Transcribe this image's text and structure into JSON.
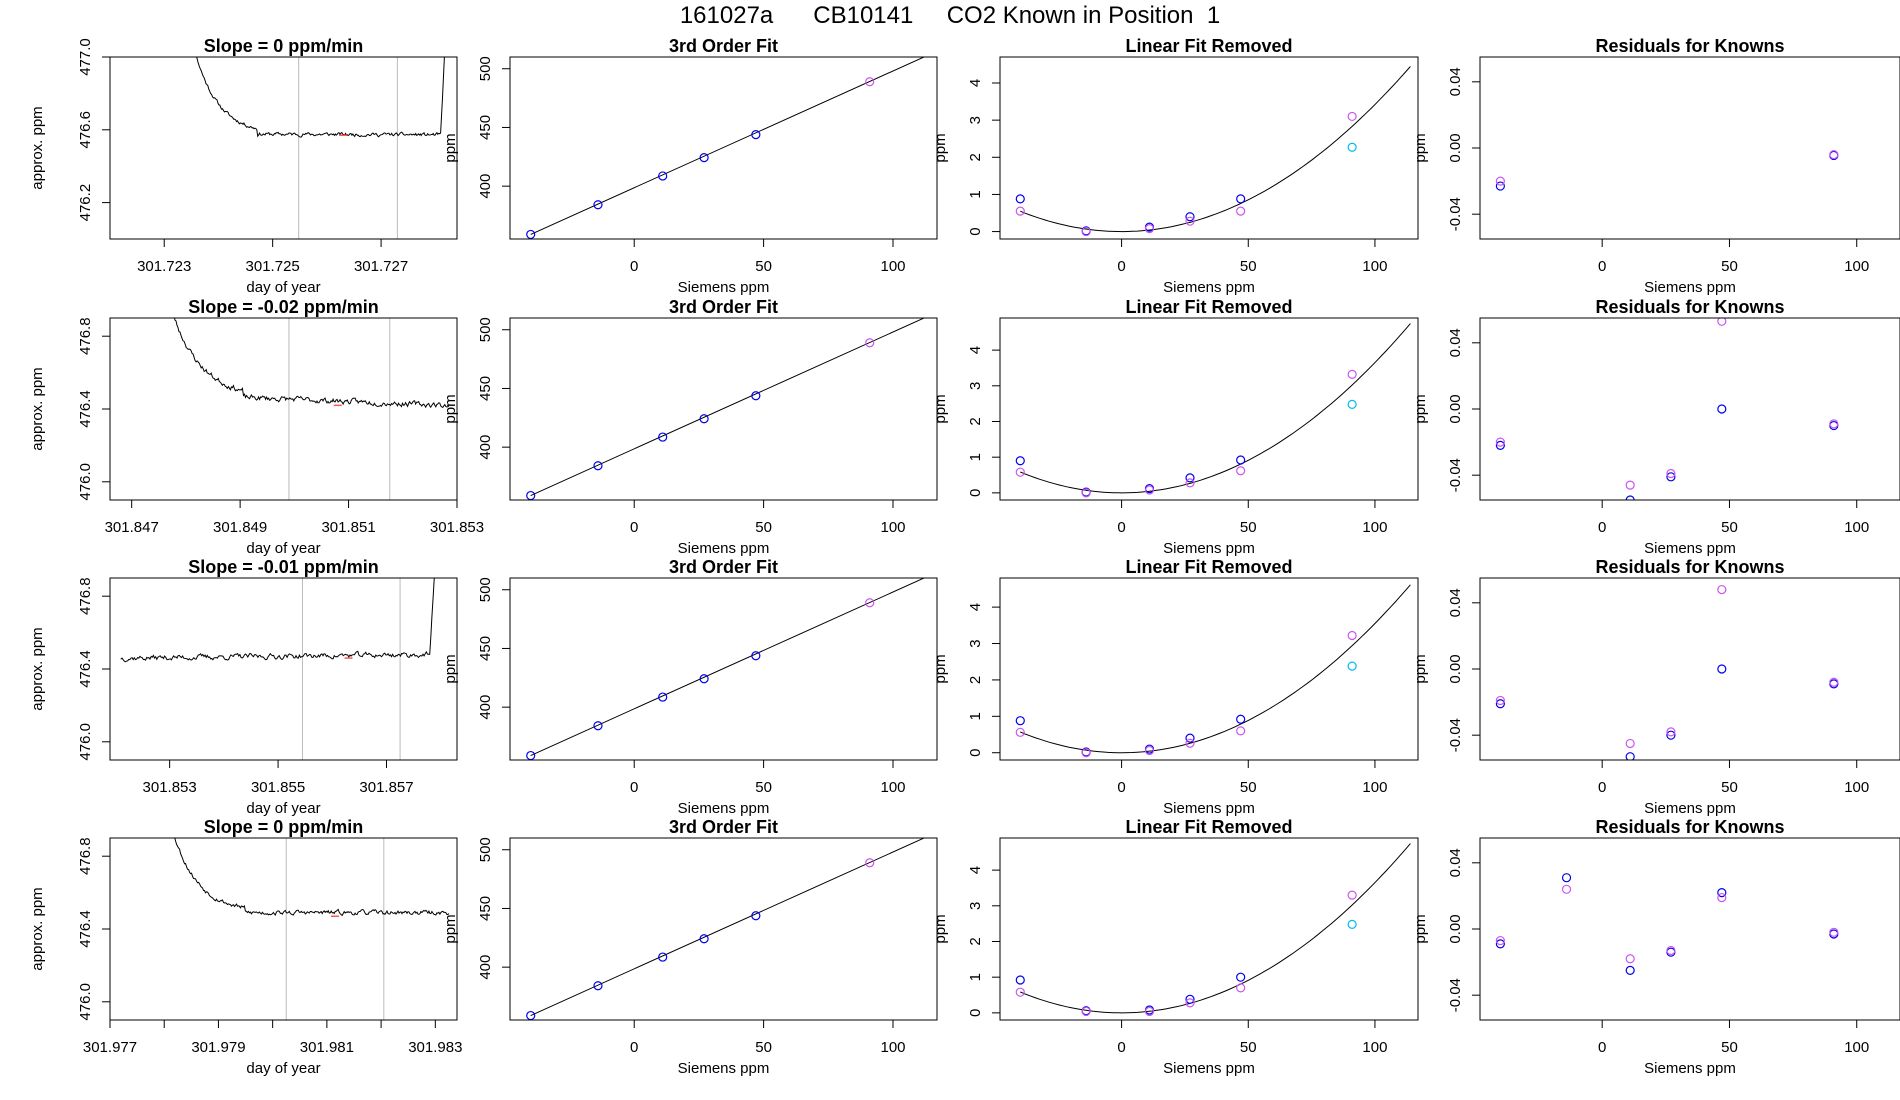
{
  "figure": {
    "title": "161027a      CB10141     CO2 Known in Position  1"
  },
  "colors": {
    "line": "#000000",
    "known_point": "#0000ee",
    "fit_point": "#cc55ee",
    "tank_point": "#00bbee",
    "vertical_marker": "#bbbbbb",
    "red_mark": "#ff5555"
  },
  "chart_data": [
    {
      "type": "line",
      "row": 1,
      "panel": "time-series",
      "title": "Slope =  0  ppm/min",
      "xlabel": "day of year",
      "ylabel": "approx. ppm",
      "xlim": [
        301.722,
        301.7284
      ],
      "ylim": [
        476.0,
        477.0
      ],
      "xticks": [
        301.723,
        301.725,
        301.727
      ],
      "xtick_labels": [
        "301.723",
        "301.725",
        "301.727"
      ],
      "yticks": [
        476.2,
        476.6,
        477.0
      ],
      "ytick_labels": [
        "476.2",
        "476.6",
        "477.0"
      ],
      "vlines": [
        301.72548,
        301.7273
      ],
      "trace": {
        "x_start": 301.72343,
        "x_end": 301.7282,
        "plateau": 476.575,
        "noise": 0.008,
        "drift": -0.005,
        "seed": 11,
        "head": {
          "x0": 301.72343,
          "x1": 301.72352,
          "y0": 477.2,
          "tau": 0.09
        },
        "tail": {
          "x0": 301.7281,
          "x1": 301.7282,
          "y1": 477.2
        }
      },
      "red_marks": [
        {
          "x": 301.7263,
          "y": 476.57
        }
      ]
    },
    {
      "type": "scatter",
      "row": 1,
      "panel": "3rd-order-fit",
      "title": "3rd Order Fit",
      "xlabel": "Siemens ppm",
      "ylabel": "ppm",
      "xlim": [
        -48,
        117
      ],
      "ylim": [
        355,
        510
      ],
      "xticks": [
        0,
        50,
        100
      ],
      "yticks": [
        400,
        450,
        500
      ],
      "series": [
        {
          "name": "",
          "role": "known",
          "x": [
            -40,
            -14,
            11,
            27,
            47
          ],
          "y": [
            358.9,
            384.2,
            408.7,
            424.3,
            443.9
          ]
        },
        {
          "name": "",
          "role": "fit",
          "x": [
            91
          ],
          "y": [
            488.9
          ]
        }
      ],
      "fit_line": {
        "x": [
          -40,
          114
        ],
        "y": [
          358.9,
          512.0
        ]
      }
    },
    {
      "type": "scatter",
      "row": 1,
      "panel": "linear-fit-removed",
      "title": "Linear Fit Removed",
      "xlabel": "Siemens ppm",
      "ylabel": "ppm",
      "xlim": [
        -48,
        117
      ],
      "ylim": [
        -0.2,
        4.7
      ],
      "xticks": [
        0,
        50,
        100
      ],
      "yticks": [
        0,
        1,
        2,
        3,
        4
      ],
      "series": [
        {
          "name": "",
          "role": "known",
          "x": [
            -40,
            -14,
            11,
            27,
            47
          ],
          "y": [
            0.88,
            0.02,
            0.12,
            0.4,
            0.88
          ]
        },
        {
          "name": "",
          "role": "fit",
          "x": [
            -40,
            -14,
            11,
            27,
            47,
            91
          ],
          "y": [
            0.55,
            0.0,
            0.08,
            0.28,
            0.55,
            3.1
          ]
        },
        {
          "name": "",
          "role": "tank",
          "x": [
            91
          ],
          "y": [
            2.27
          ]
        }
      ],
      "curve": {
        "a": 0.000342,
        "x": [
          -40,
          114
        ]
      }
    },
    {
      "type": "scatter",
      "row": 1,
      "panel": "residuals",
      "title": "Residuals for Knowns",
      "xlabel": "Siemens ppm",
      "ylabel": "ppm",
      "xlim": [
        -48,
        117
      ],
      "ylim": [
        -0.055,
        0.055
      ],
      "xticks": [
        0,
        50,
        100
      ],
      "yticks": [
        -0.04,
        0.0,
        0.04
      ],
      "ytick_labels": [
        "-0.04",
        "0.00",
        "0.04"
      ],
      "series": [
        {
          "name": "",
          "role": "known",
          "x": [
            -40,
            91
          ],
          "y": [
            -0.023,
            -0.0045
          ]
        },
        {
          "name": "",
          "role": "fit",
          "x": [
            -40,
            91
          ],
          "y": [
            -0.02,
            -0.004
          ]
        }
      ]
    },
    {
      "type": "line",
      "row": 2,
      "panel": "time-series",
      "title": "Slope =  -0.02  ppm/min",
      "xlabel": "day of year",
      "ylabel": "approx. ppm",
      "xlim": [
        301.8466,
        301.853
      ],
      "ylim": [
        475.9,
        476.9
      ],
      "xticks": [
        301.847,
        301.849,
        301.851,
        301.853
      ],
      "xtick_labels": [
        "301.847",
        "301.849",
        "301.851",
        "301.853"
      ],
      "yticks": [
        476.0,
        476.4,
        476.8
      ],
      "ytick_labels": [
        "476.0",
        "476.4",
        "476.8"
      ],
      "vlines": [
        301.8499,
        301.85176
      ],
      "trace": {
        "x_start": 301.84765,
        "x_end": 301.85285,
        "plateau": 476.45,
        "noise": 0.012,
        "drift": -0.06,
        "seed": 23,
        "head": {
          "x0": 301.84765,
          "x1": 301.84775,
          "y0": 477.0,
          "tau": 0.1
        }
      },
      "red_marks": [
        {
          "x": 301.8508,
          "y": 476.42
        }
      ]
    },
    {
      "type": "scatter",
      "row": 2,
      "panel": "3rd-order-fit",
      "title": "3rd Order Fit",
      "xlabel": "Siemens ppm",
      "ylabel": "ppm",
      "xlim": [
        -48,
        117
      ],
      "ylim": [
        355,
        510
      ],
      "xticks": [
        0,
        50,
        100
      ],
      "yticks": [
        400,
        450,
        500
      ],
      "series": [
        {
          "name": "",
          "role": "known",
          "x": [
            -40,
            -14,
            11,
            27,
            47
          ],
          "y": [
            358.8,
            384.2,
            408.6,
            424.2,
            443.8
          ]
        },
        {
          "name": "",
          "role": "fit",
          "x": [
            91
          ],
          "y": [
            488.9
          ]
        }
      ],
      "fit_line": {
        "x": [
          -40,
          114
        ],
        "y": [
          358.8,
          512.0
        ]
      }
    },
    {
      "type": "scatter",
      "row": 2,
      "panel": "linear-fit-removed",
      "title": "Linear Fit Removed",
      "xlabel": "Siemens ppm",
      "ylabel": "ppm",
      "xlim": [
        -48,
        117
      ],
      "ylim": [
        -0.2,
        4.9
      ],
      "xticks": [
        0,
        50,
        100
      ],
      "yticks": [
        0,
        1,
        2,
        3,
        4
      ],
      "series": [
        {
          "name": "",
          "role": "known",
          "x": [
            -40,
            -14,
            11,
            27,
            47
          ],
          "y": [
            0.9,
            0.02,
            0.12,
            0.42,
            0.92
          ]
        },
        {
          "name": "",
          "role": "fit",
          "x": [
            -40,
            -14,
            11,
            27,
            47,
            91
          ],
          "y": [
            0.58,
            0.0,
            0.08,
            0.28,
            0.62,
            3.32
          ]
        },
        {
          "name": "",
          "role": "tank",
          "x": [
            91
          ],
          "y": [
            2.48
          ]
        }
      ],
      "curve": {
        "a": 0.000365,
        "x": [
          -40,
          114
        ]
      }
    },
    {
      "type": "scatter",
      "row": 2,
      "panel": "residuals",
      "title": "Residuals for Knowns",
      "xlabel": "Siemens ppm",
      "ylabel": "ppm",
      "xlim": [
        -48,
        117
      ],
      "ylim": [
        -0.055,
        0.055
      ],
      "xticks": [
        0,
        50,
        100
      ],
      "yticks": [
        -0.04,
        0.0,
        0.04
      ],
      "ytick_labels": [
        "-0.04",
        "0.00",
        "0.04"
      ],
      "series": [
        {
          "name": "",
          "role": "known",
          "x": [
            -40,
            11,
            27,
            47,
            91
          ],
          "y": [
            -0.022,
            -0.055,
            -0.041,
            0.0,
            -0.01
          ]
        },
        {
          "name": "",
          "role": "fit",
          "x": [
            -40,
            11,
            27,
            47,
            91
          ],
          "y": [
            -0.02,
            -0.046,
            -0.039,
            0.053,
            -0.009
          ]
        }
      ]
    },
    {
      "type": "line",
      "row": 3,
      "panel": "time-series",
      "title": "Slope =  -0.01  ppm/min",
      "xlabel": "day of year",
      "ylabel": "approx. ppm",
      "xlim": [
        301.8519,
        301.8583
      ],
      "ylim": [
        475.9,
        476.9
      ],
      "xticks": [
        301.853,
        301.855,
        301.857
      ],
      "xtick_labels": [
        "301.853",
        "301.855",
        "301.857"
      ],
      "yticks": [
        476.0,
        476.4,
        476.8
      ],
      "ytick_labels": [
        "476.0",
        "476.4",
        "476.8"
      ],
      "vlines": [
        301.85545,
        301.85725
      ],
      "trace": {
        "x_start": 301.8521,
        "x_end": 301.8579,
        "plateau": 476.47,
        "noise": 0.012,
        "drift": 0.02,
        "seed": 37,
        "tail": {
          "x0": 301.8578,
          "x1": 301.8579,
          "y1": 477.0
        }
      },
      "red_marks": [
        {
          "x": 301.8563,
          "y": 476.46
        }
      ]
    },
    {
      "type": "scatter",
      "row": 3,
      "panel": "3rd-order-fit",
      "title": "3rd Order Fit",
      "xlabel": "Siemens ppm",
      "ylabel": "ppm",
      "xlim": [
        -48,
        117
      ],
      "ylim": [
        355,
        510
      ],
      "xticks": [
        0,
        50,
        100
      ],
      "yticks": [
        400,
        450,
        500
      ],
      "series": [
        {
          "name": "",
          "role": "known",
          "x": [
            -40,
            -14,
            11,
            27,
            47
          ],
          "y": [
            358.8,
            384.2,
            408.6,
            424.2,
            443.8
          ]
        },
        {
          "name": "",
          "role": "fit",
          "x": [
            91
          ],
          "y": [
            488.9
          ]
        }
      ],
      "fit_line": {
        "x": [
          -40,
          114
        ],
        "y": [
          358.8,
          512.0
        ]
      }
    },
    {
      "type": "scatter",
      "row": 3,
      "panel": "linear-fit-removed",
      "title": "Linear Fit Removed",
      "xlabel": "Siemens ppm",
      "ylabel": "ppm",
      "xlim": [
        -48,
        117
      ],
      "ylim": [
        -0.2,
        4.8
      ],
      "xticks": [
        0,
        50,
        100
      ],
      "yticks": [
        0,
        1,
        2,
        3,
        4
      ],
      "series": [
        {
          "name": "",
          "role": "known",
          "x": [
            -40,
            -14,
            11,
            27,
            47
          ],
          "y": [
            0.88,
            0.02,
            0.1,
            0.4,
            0.92
          ]
        },
        {
          "name": "",
          "role": "fit",
          "x": [
            -40,
            -14,
            11,
            27,
            47,
            91
          ],
          "y": [
            0.56,
            0.0,
            0.06,
            0.26,
            0.6,
            3.22
          ]
        },
        {
          "name": "",
          "role": "tank",
          "x": [
            91
          ],
          "y": [
            2.38
          ]
        }
      ],
      "curve": {
        "a": 0.000355,
        "x": [
          -40,
          114
        ]
      }
    },
    {
      "type": "scatter",
      "row": 3,
      "panel": "residuals",
      "title": "Residuals for Knowns",
      "xlabel": "Siemens ppm",
      "ylabel": "ppm",
      "xlim": [
        -48,
        117
      ],
      "ylim": [
        -0.055,
        0.055
      ],
      "xticks": [
        0,
        50,
        100
      ],
      "yticks": [
        -0.04,
        0.0,
        0.04
      ],
      "ytick_labels": [
        "-0.04",
        "0.00",
        "0.04"
      ],
      "series": [
        {
          "name": "",
          "role": "known",
          "x": [
            -40,
            11,
            27,
            47,
            91
          ],
          "y": [
            -0.021,
            -0.053,
            -0.04,
            0.0,
            -0.009
          ]
        },
        {
          "name": "",
          "role": "fit",
          "x": [
            -40,
            11,
            27,
            47,
            91
          ],
          "y": [
            -0.019,
            -0.045,
            -0.038,
            0.048,
            -0.008
          ]
        }
      ]
    },
    {
      "type": "line",
      "row": 4,
      "panel": "time-series",
      "title": "Slope =  0  ppm/min",
      "xlabel": "day of year",
      "ylabel": "approx. ppm",
      "xlim": [
        301.977,
        301.9834
      ],
      "ylim": [
        475.9,
        476.9
      ],
      "xticks": [
        301.977,
        301.978,
        301.979,
        301.98,
        301.981,
        301.982,
        301.983
      ],
      "xtick_labels": [
        "301.977",
        "",
        "301.979",
        "",
        "301.981",
        "",
        "301.983"
      ],
      "yticks": [
        476.0,
        476.4,
        476.8
      ],
      "ytick_labels": [
        "476.0",
        "476.4",
        "476.8"
      ],
      "vlines": [
        301.98025,
        301.98205
      ],
      "trace": {
        "x_start": 301.9781,
        "x_end": 301.98325,
        "plateau": 476.49,
        "noise": 0.01,
        "drift": 0.0,
        "seed": 53,
        "head": {
          "x0": 301.9781,
          "x1": 301.9782,
          "y0": 477.0,
          "tau": 0.09
        }
      },
      "red_marks": [
        {
          "x": 301.98115,
          "y": 476.47
        }
      ]
    },
    {
      "type": "scatter",
      "row": 4,
      "panel": "3rd-order-fit",
      "title": "3rd Order Fit",
      "xlabel": "Siemens ppm",
      "ylabel": "ppm",
      "xlim": [
        -48,
        117
      ],
      "ylim": [
        355,
        510
      ],
      "xticks": [
        0,
        50,
        100
      ],
      "yticks": [
        400,
        450,
        500
      ],
      "series": [
        {
          "name": "",
          "role": "known",
          "x": [
            -40,
            -14,
            11,
            27,
            47
          ],
          "y": [
            358.8,
            384.2,
            408.6,
            424.2,
            443.8
          ]
        },
        {
          "name": "",
          "role": "fit",
          "x": [
            91
          ],
          "y": [
            488.9
          ]
        }
      ],
      "fit_line": {
        "x": [
          -40,
          114
        ],
        "y": [
          358.8,
          512.0
        ]
      }
    },
    {
      "type": "scatter",
      "row": 4,
      "panel": "linear-fit-removed",
      "title": "Linear Fit Removed",
      "xlabel": "Siemens ppm",
      "ylabel": "ppm",
      "xlim": [
        -48,
        117
      ],
      "ylim": [
        -0.2,
        4.9
      ],
      "xticks": [
        0,
        50,
        100
      ],
      "yticks": [
        0,
        1,
        2,
        3,
        4
      ],
      "series": [
        {
          "name": "",
          "role": "known",
          "x": [
            -40,
            -14,
            11,
            27,
            47
          ],
          "y": [
            0.92,
            0.06,
            0.08,
            0.38,
            1.0
          ]
        },
        {
          "name": "",
          "role": "fit",
          "x": [
            -40,
            -14,
            11,
            27,
            47,
            91
          ],
          "y": [
            0.58,
            0.04,
            0.04,
            0.28,
            0.7,
            3.3
          ]
        },
        {
          "name": "",
          "role": "tank",
          "x": [
            91
          ],
          "y": [
            2.48
          ]
        }
      ],
      "curve": {
        "a": 0.000365,
        "x": [
          -40,
          114
        ]
      }
    },
    {
      "type": "scatter",
      "row": 4,
      "panel": "residuals",
      "title": "Residuals for Knowns",
      "xlabel": "Siemens ppm",
      "ylabel": "ppm",
      "xlim": [
        -48,
        117
      ],
      "ylim": [
        -0.055,
        0.055
      ],
      "xticks": [
        0,
        50,
        100
      ],
      "yticks": [
        -0.04,
        0.0,
        0.04
      ],
      "ytick_labels": [
        "-0.04",
        "0.00",
        "0.04"
      ],
      "series": [
        {
          "name": "",
          "role": "known",
          "x": [
            -40,
            -14,
            11,
            27,
            47,
            91
          ],
          "y": [
            -0.009,
            0.031,
            -0.025,
            -0.014,
            0.022,
            -0.003
          ]
        },
        {
          "name": "",
          "role": "fit",
          "x": [
            -40,
            -14,
            11,
            27,
            47,
            91
          ],
          "y": [
            -0.007,
            0.024,
            -0.018,
            -0.013,
            0.019,
            -0.002
          ]
        }
      ]
    }
  ]
}
